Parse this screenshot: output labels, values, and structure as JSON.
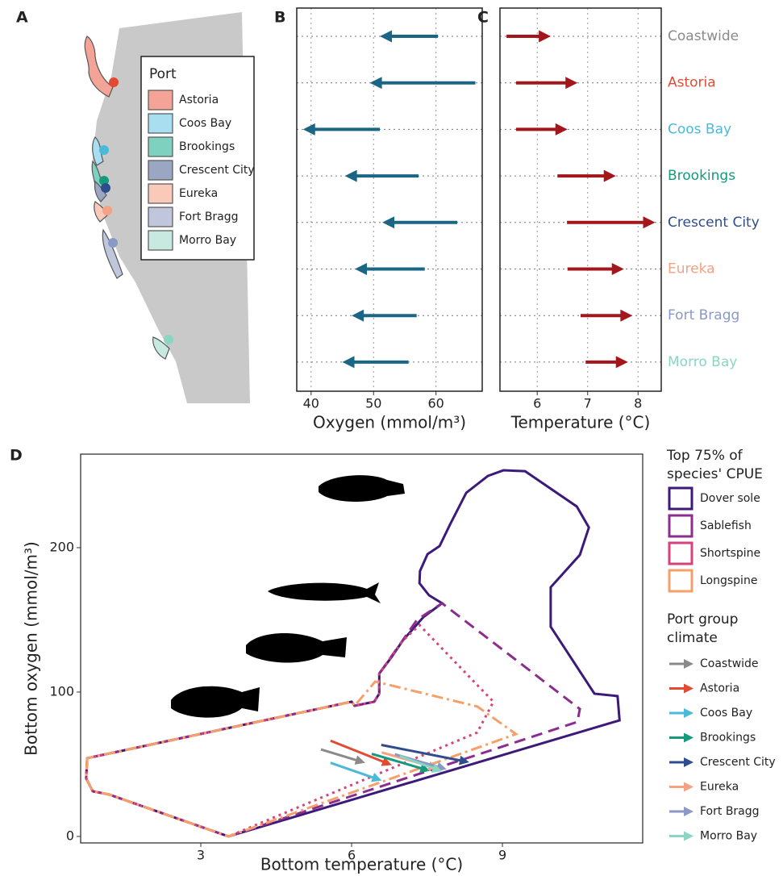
{
  "chart_data": [
    {
      "type": "map",
      "label": "A",
      "legend_title": "Port",
      "categories": [
        "Astoria",
        "Coos Bay",
        "Brookings",
        "Crescent City",
        "Eureka",
        "Fort Bragg",
        "Morro Bay"
      ],
      "colors": [
        "#f4a497",
        "#a9def0",
        "#7fd1bf",
        "#9aa6c2",
        "#f9c9ba",
        "#c0c7dd",
        "#c8e9df"
      ]
    },
    {
      "type": "arrow",
      "label": "B",
      "x_label": "Oxygen (mmol/m³)",
      "color": "#1b6684",
      "start": [
        60.3,
        66.3,
        51,
        57.2,
        63.4,
        58.2,
        56.9,
        55.6
      ],
      "end": [
        51,
        49.4,
        38.7,
        45.4,
        51.4,
        47,
        46.5,
        45
      ],
      "xlim": [
        37.7,
        67.4
      ],
      "xticks": [
        40,
        50,
        60
      ],
      "grid": true
    },
    {
      "type": "arrow",
      "label": "C",
      "x_label": "Temperature (°C)",
      "color": "#a3161c",
      "categories": [
        "Coastwide",
        "Astoria",
        "Coos Bay",
        "Brookings",
        "Crescent City",
        "Eureka",
        "Fort Bragg",
        "Morro Bay"
      ],
      "category_colors": [
        "#8a8a8a",
        "#e34a33",
        "#4bbad8",
        "#159a7c",
        "#2f4d8c",
        "#f4a184",
        "#8a99c6",
        "#8ad6c2"
      ],
      "start": [
        5.39,
        5.58,
        5.58,
        6.4,
        6.59,
        6.6,
        6.86,
        6.96
      ],
      "end": [
        6.27,
        6.8,
        6.6,
        7.56,
        8.34,
        7.72,
        7.89,
        7.8
      ],
      "xlim": [
        5.26,
        8.46
      ],
      "xticks": [
        6,
        7,
        8
      ],
      "grid": true
    },
    {
      "type": "polygon",
      "label": "D",
      "x_label": "Bottom temperature (°C)",
      "y_label": "Bottom oxygen (mmol/m³)",
      "xlim": [
        0.61,
        11.79
      ],
      "ylim": [
        -4.5,
        264.8
      ],
      "xticks": [
        3,
        6,
        9
      ],
      "yticks": [
        0,
        100,
        200
      ],
      "legend_title": [
        "Top 75% of",
        "species' CPUE"
      ],
      "series": [
        {
          "name": "Dover sole",
          "color": "#3b1a7a",
          "dash": "solid",
          "x": [
            0.74,
            0.72,
            0.85,
            1.17,
            3.55,
            11.33,
            11.29,
            10.83,
            9.96,
            9.96,
            10.54,
            10.72,
            10.48,
            9.45,
            9.02,
            8.71,
            8.28,
            7.96,
            7.75,
            7.51,
            7.36,
            7.35,
            7.54,
            7.8,
            7.43,
            7.19,
            7.03,
            6.79,
            6.55,
            6.55,
            6.45,
            6.06,
            6.0
          ],
          "y": [
            54.2,
            40.2,
            31.3,
            29.1,
            0,
            80.4,
            97.2,
            98.9,
            145.3,
            172.6,
            195,
            214,
            228.5,
            253,
            253.6,
            249.7,
            238,
            216.2,
            201.1,
            195.5,
            183.8,
            175.4,
            167,
            161.5,
            152,
            142.5,
            136.3,
            124,
            112.8,
            98.9,
            93.3,
            90.5,
            93.3
          ]
        },
        {
          "name": "Sablefish",
          "color": "#8b2d8e",
          "dash": "dashed",
          "x": [
            0.74,
            0.72,
            0.85,
            1.17,
            3.55,
            10.49,
            10.54,
            7.8,
            7.3,
            7.1,
            6.55,
            6.55,
            6.45,
            6.06,
            6.0
          ],
          "y": [
            54.2,
            40.2,
            31.3,
            29.1,
            0,
            79.3,
            88.3,
            161.5,
            150,
            140,
            112.8,
            98.9,
            93.3,
            90.5,
            93.3
          ]
        },
        {
          "name": "Shortspine",
          "color": "#d6427a",
          "dash": "dotted",
          "x": [
            0.74,
            0.72,
            0.85,
            1.17,
            3.55,
            8.5,
            8.82,
            7.35,
            7.0,
            6.55,
            6.55,
            6.45,
            6.06,
            6.0
          ],
          "y": [
            54.2,
            40.2,
            31.3,
            29.1,
            0,
            72,
            93.3,
            146.4,
            135,
            112.8,
            98.9,
            93.3,
            90.5,
            93.3
          ]
        },
        {
          "name": "Longspine",
          "color": "#f5a06a",
          "dash": "dashdot",
          "x": [
            0.74,
            0.72,
            0.85,
            1.17,
            3.55,
            9.27,
            8.5,
            6.47,
            6.06,
            6.0
          ],
          "y": [
            54.2,
            40.2,
            31.3,
            29.1,
            0,
            70.9,
            90,
            107.3,
            90.5,
            93.3
          ]
        }
      ],
      "arrow_legend_title": [
        "Port group",
        "climate"
      ],
      "arrow_legend": [
        "Coastwide",
        "Astoria",
        "Coos Bay",
        "Brookings",
        "Crescent City",
        "Eureka",
        "Fort Bragg",
        "Morro Bay"
      ]
    }
  ]
}
